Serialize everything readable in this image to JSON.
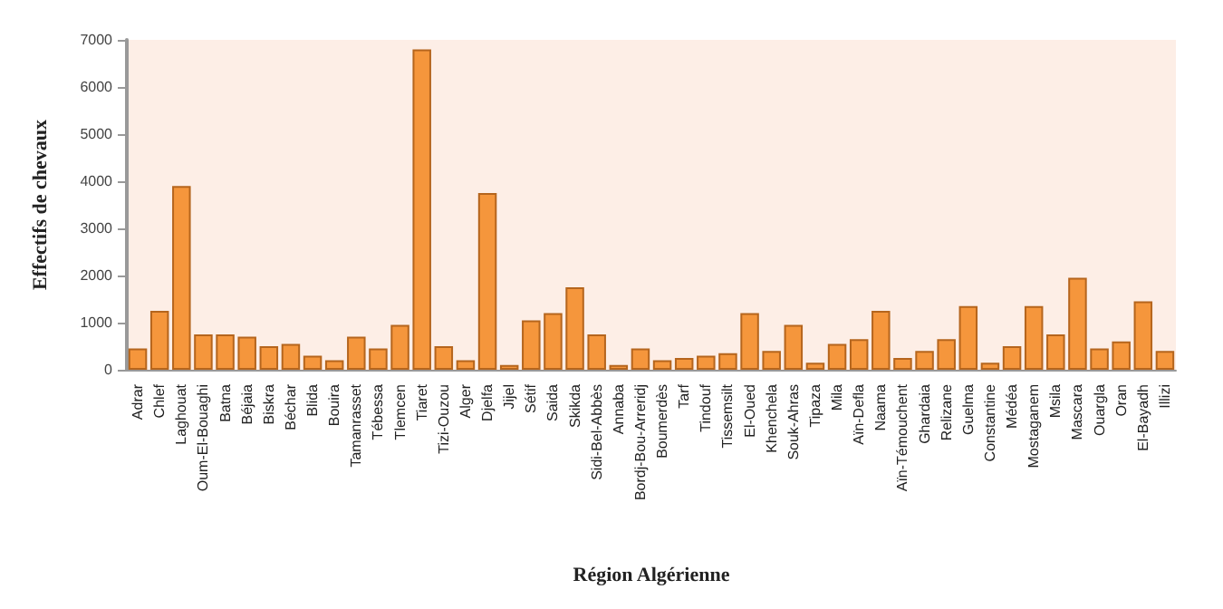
{
  "chart_data": {
    "type": "bar",
    "xlabel": "Région Algérienne",
    "ylabel": "Effectifs de chevaux",
    "categories": [
      "Adrar",
      "Chlef",
      "Laghouat",
      "Oum-El-Bouaghi",
      "Batna",
      "Béjaia",
      "Biskra",
      "Béchar",
      "Blida",
      "Bouira",
      "Tamanrasset",
      "Tébessa",
      "Tlemcen",
      "Tiaret",
      "Tizi-Ouzou",
      "Alger",
      "Djelfa",
      "Jijel",
      "Sétif",
      "Saida",
      "Skikda",
      "Sidi-Bel-Abbès",
      "Annaba",
      "Bordj-Bou-Arreridj",
      "Boumerdès",
      "Tarf",
      "Tindouf",
      "Tissemsilt",
      "El-Oued",
      "Khenchela",
      "Souk-Ahras",
      "Tipaza",
      "Mila",
      "Aïn-Defla",
      "Naama",
      "Aïn-Témouchent",
      "Ghardaia",
      "Relizane",
      "Guelma",
      "Constantine",
      "Médéa",
      "Mostaganem",
      "Msila",
      "Mascara",
      "Ouargla",
      "Oran",
      "El-Bayadh",
      "Illizi"
    ],
    "values": [
      450,
      1250,
      3900,
      750,
      750,
      700,
      500,
      550,
      300,
      200,
      700,
      450,
      950,
      6800,
      500,
      200,
      3750,
      100,
      1050,
      1200,
      1750,
      750,
      100,
      450,
      200,
      250,
      300,
      350,
      1200,
      400,
      950,
      150,
      550,
      650,
      1250,
      250,
      400,
      650,
      1350,
      150,
      500,
      1350,
      750,
      1950,
      450,
      600,
      1450,
      400
    ],
    "color": "#f5963c",
    "ylim": [
      0,
      7000
    ],
    "yticks": [
      0,
      1000,
      2000,
      3000,
      4000,
      5000,
      6000,
      7000
    ],
    "grid": false
  }
}
